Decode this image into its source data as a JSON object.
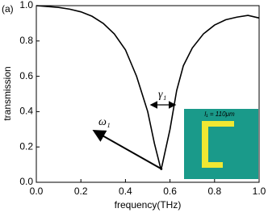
{
  "chart_data": {
    "type": "line",
    "label": "(a)",
    "x_label": "frequency(THz)",
    "y_label": "transmission",
    "x": [
      0.0,
      0.05,
      0.1,
      0.15,
      0.2,
      0.25,
      0.3,
      0.35,
      0.4,
      0.45,
      0.5,
      0.53,
      0.56,
      0.6,
      0.63,
      0.66,
      0.7,
      0.75,
      0.8,
      0.85,
      0.9,
      0.95,
      1.0
    ],
    "values": [
      1.0,
      0.995,
      0.99,
      0.98,
      0.965,
      0.94,
      0.9,
      0.84,
      0.75,
      0.6,
      0.4,
      0.22,
      0.07,
      0.3,
      0.52,
      0.66,
      0.76,
      0.84,
      0.89,
      0.92,
      0.935,
      0.945,
      0.93
    ],
    "color": "#000000",
    "xlim": [
      0.0,
      1.0
    ],
    "ylim": [
      0.0,
      1.0
    ],
    "xticks": [
      {
        "value": 0,
        "label": "0.0"
      },
      {
        "value": 0.2,
        "label": "0.2"
      },
      {
        "value": 0.4,
        "label": "0.4"
      },
      {
        "value": 0.6,
        "label": "0.6"
      },
      {
        "value": 0.8,
        "label": "0.8"
      },
      {
        "value": 1,
        "label": "1.0"
      }
    ],
    "yticks": [
      {
        "value": 0,
        "label": "0.0"
      },
      {
        "value": 0.2,
        "label": "0.2"
      },
      {
        "value": 0.4,
        "label": "0.4"
      },
      {
        "value": 0.6,
        "label": "0.6"
      },
      {
        "value": 0.8,
        "label": "0.8"
      },
      {
        "value": 1,
        "label": "1.0"
      }
    ],
    "annotations": [
      "ω₁",
      "γ₁",
      "l₁ = 110μm"
    ]
  }
}
